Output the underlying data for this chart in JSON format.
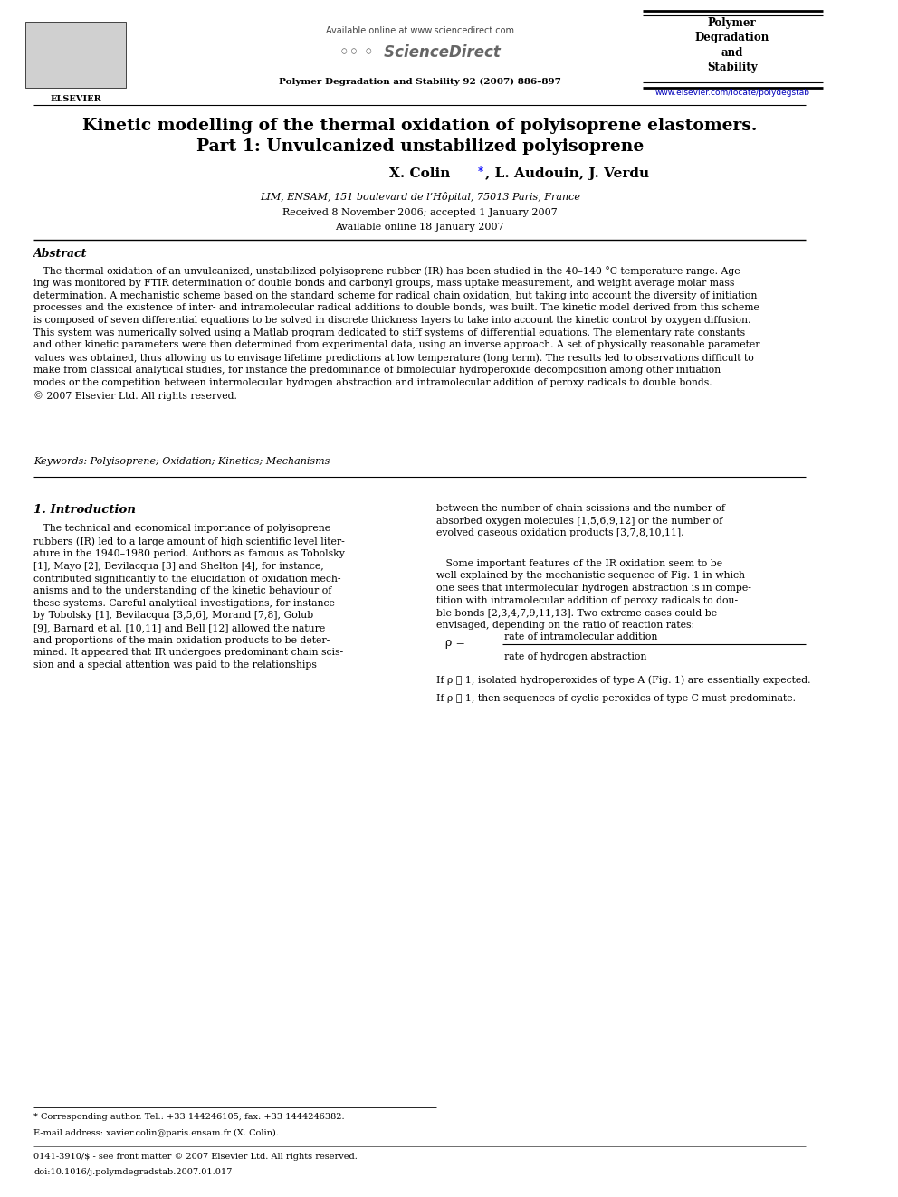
{
  "page_width": 9.92,
  "page_height": 13.23,
  "bg_color": "#ffffff",
  "header": {
    "available_online": "Available online at www.sciencedirect.com",
    "journal_name_center": "Polymer Degradation and Stability 92 (2007) 886–897",
    "journal_url": "www.elsevier.com/locate/polydegstab",
    "elsevier_label": "ELSEVIER"
  },
  "title_line1": "Kinetic modelling of the thermal oxidation of polyisoprene elastomers.",
  "title_line2": "Part 1: Unvulcanized unstabilized polyisoprene",
  "authors_pre": "X. Colin",
  "authors_post": ", L. Audouin, J. Verdu",
  "affiliation": "LIM, ENSAM, 151 boulevard de l’Hôpital, 75013 Paris, France",
  "received": "Received 8 November 2006; accepted 1 January 2007",
  "available": "Available online 18 January 2007",
  "abstract_title": "Abstract",
  "keywords": "Keywords: Polyisoprene; Oxidation; Kinetics; Mechanisms",
  "section1_title": "1. Introduction",
  "rho_line1": "If ρ ≪ 1, isolated hydroperoxides of type A (Fig. 1) are essentially expected.",
  "rho_line2": "If ρ ≫ 1, then sequences of cyclic peroxides of type C must predominate.",
  "footnote_star": "* Corresponding author. Tel.: +33 144246105; fax: +33 1444246382.",
  "footnote_email": "E-mail address: xavier.colin@paris.ensam.fr (X. Colin).",
  "footnote_issn": "0141-3910/$ - see front matter © 2007 Elsevier Ltd. All rights reserved.",
  "footnote_doi": "doi:10.1016/j.polymdegradstab.2007.01.017"
}
